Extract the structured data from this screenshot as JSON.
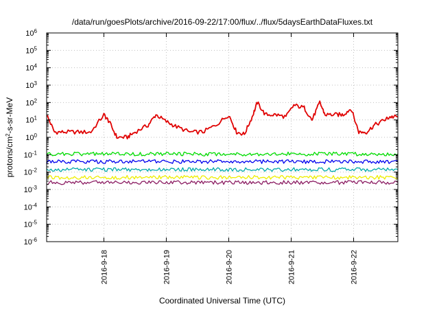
{
  "chart_data": {
    "type": "line",
    "title": "/data/run/goesPlots/archive/2016-09-22/17:00/flux/../flux/5daysEarthDataFluxes.txt",
    "xlabel": "Coordinated Universal Time (UTC)",
    "ylabel_parts": [
      "protons/cm",
      "2",
      "-s-sr-MeV"
    ],
    "y_scale": "log",
    "ylim": [
      1e-06,
      1000000.0
    ],
    "y_ticks": [
      {
        "value": 1e-06,
        "base": "10",
        "exp": "-6"
      },
      {
        "value": 1e-05,
        "base": "10",
        "exp": "-5"
      },
      {
        "value": 0.0001,
        "base": "10",
        "exp": "-4"
      },
      {
        "value": 0.001,
        "base": "10",
        "exp": "-3"
      },
      {
        "value": 0.01,
        "base": "10",
        "exp": "-2"
      },
      {
        "value": 0.1,
        "base": "10",
        "exp": "-1"
      },
      {
        "value": 1,
        "base": "10",
        "exp": "0"
      },
      {
        "value": 10.0,
        "base": "10",
        "exp": "1"
      },
      {
        "value": 100.0,
        "base": "10",
        "exp": "2"
      },
      {
        "value": 1000.0,
        "base": "10",
        "exp": "3"
      },
      {
        "value": 10000.0,
        "base": "10",
        "exp": "4"
      },
      {
        "value": 100000.0,
        "base": "10",
        "exp": "5"
      },
      {
        "value": 1000000.0,
        "base": "10",
        "exp": "6"
      }
    ],
    "xlim": [
      "2016-09-17 02:00",
      "2016-09-22 17:00"
    ],
    "x_ticks": [
      {
        "at": "2016-09-18 00:00",
        "label": "2016-9-18"
      },
      {
        "at": "2016-09-19 00:00",
        "label": "2016-9-19"
      },
      {
        "at": "2016-09-20 00:00",
        "label": "2016-9-20"
      },
      {
        "at": "2016-09-21 00:00",
        "label": "2016-9-21"
      },
      {
        "at": "2016-09-22 00:00",
        "label": "2016-9-22"
      }
    ],
    "grid": true,
    "legend": "none",
    "series": [
      {
        "color": "#e00000",
        "x": [
          "2016-09-17 02:00",
          "2016-09-17 05:00",
          "2016-09-17 09:00",
          "2016-09-17 14:00",
          "2016-09-17 19:00",
          "2016-09-18 00:00",
          "2016-09-18 02:00",
          "2016-09-18 05:00",
          "2016-09-18 09:00",
          "2016-09-18 12:00",
          "2016-09-18 17:00",
          "2016-09-18 20:00",
          "2016-09-19 00:00",
          "2016-09-19 04:00",
          "2016-09-19 09:00",
          "2016-09-19 14:00",
          "2016-09-19 19:00",
          "2016-09-20 00:00",
          "2016-09-20 03:00",
          "2016-09-20 06:00",
          "2016-09-20 09:00",
          "2016-09-20 11:00",
          "2016-09-20 14:00",
          "2016-09-20 18:00",
          "2016-09-20 22:00",
          "2016-09-21 01:00",
          "2016-09-21 05:00",
          "2016-09-21 08:00",
          "2016-09-21 11:00",
          "2016-09-21 13:00",
          "2016-09-21 17:00",
          "2016-09-21 20:00",
          "2016-09-21 23:00",
          "2016-09-22 02:00",
          "2016-09-22 05:00",
          "2016-09-22 08:00",
          "2016-09-22 12:00",
          "2016-09-22 14:00",
          "2016-09-22 17:00"
        ],
        "y": [
          20,
          2,
          2,
          2,
          2,
          20,
          8,
          1,
          1,
          2,
          5,
          20,
          8,
          4,
          2,
          2,
          5,
          20,
          2,
          1.5,
          15,
          100,
          20,
          20,
          15,
          70,
          50,
          10,
          100,
          20,
          20,
          20,
          45,
          2,
          2,
          5,
          10,
          15,
          15
        ]
      },
      {
        "color": "#00dd00",
        "x": [
          "2016-09-17 02:00",
          "2016-09-22 17:00"
        ],
        "y": [
          0.11,
          0.11
        ]
      },
      {
        "color": "#0000ee",
        "x": [
          "2016-09-17 02:00",
          "2016-09-22 17:00"
        ],
        "y": [
          0.04,
          0.04
        ]
      },
      {
        "color": "#00aaaa",
        "x": [
          "2016-09-17 02:00",
          "2016-09-22 17:00"
        ],
        "y": [
          0.014,
          0.014
        ]
      },
      {
        "color": "#eeee00",
        "x": [
          "2016-09-17 02:00",
          "2016-09-22 17:00"
        ],
        "y": [
          0.005,
          0.005
        ]
      },
      {
        "color": "#8b1c62",
        "x": [
          "2016-09-17 02:00",
          "2016-09-22 17:00"
        ],
        "y": [
          0.0025,
          0.0025
        ]
      }
    ]
  }
}
